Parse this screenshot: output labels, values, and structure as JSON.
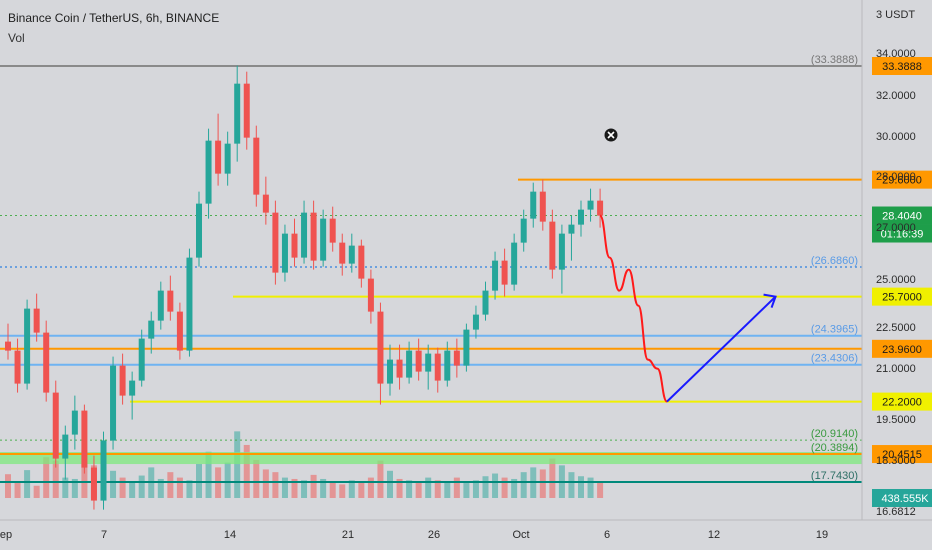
{
  "header": {
    "title": "Binance Coin / TetherUS, 6h, BINANCE",
    "indicator": "Vol"
  },
  "colors": {
    "background": "#d6d7db",
    "up_candle": "#26a69a",
    "down_candle": "#ef5350",
    "yellow_level": "#f0f000",
    "orange_level": "#ff9800",
    "blue_level": "#6fb3f2",
    "dotted_blue": "#4a8fe0",
    "dotted_green": "#4caf50",
    "teal_level": "#00897b",
    "green_band": "#7dea7d",
    "projection_red": "#ff1a1a",
    "projection_blue": "#1a1aff",
    "price_badge": "#1e9e4a"
  },
  "chart_data": {
    "type": "candlestick",
    "title": "Binance Coin / TetherUS, 6h, BINANCE",
    "indicator": "Vol",
    "y_unit": "USDT",
    "x_tick_labels": [
      "ep",
      "7",
      "14",
      "21",
      "26",
      "Oct",
      "6",
      "12",
      "19"
    ],
    "y_tick_labels": [
      "34.0000",
      "32.0000",
      "30.0000",
      "28.0000",
      "27.0000",
      "25.0000",
      "22.5000",
      "21.0000",
      "19.5000",
      "18.3000",
      "16.6812"
    ],
    "axis_top_label": "3 USDT",
    "ylim": [
      16.6,
      35.0
    ],
    "grid": false,
    "candles": [
      [
        0,
        24.2,
        24.8,
        23.6,
        23.9
      ],
      [
        1,
        23.9,
        24.3,
        22.5,
        22.8
      ],
      [
        2,
        22.8,
        25.6,
        22.6,
        25.3
      ],
      [
        3,
        25.3,
        25.8,
        24.2,
        24.5
      ],
      [
        4,
        24.5,
        24.9,
        22.2,
        22.5
      ],
      [
        5,
        22.5,
        22.9,
        20.0,
        20.3
      ],
      [
        6,
        20.3,
        21.4,
        19.6,
        21.1
      ],
      [
        7,
        21.1,
        22.4,
        20.6,
        21.9
      ],
      [
        8,
        21.9,
        22.1,
        19.8,
        20.0
      ],
      [
        9,
        20.0,
        20.4,
        18.6,
        18.9
      ],
      [
        10,
        18.9,
        21.2,
        18.6,
        20.9
      ],
      [
        11,
        20.9,
        23.7,
        20.6,
        23.4
      ],
      [
        12,
        23.4,
        23.8,
        22.1,
        22.4
      ],
      [
        13,
        22.4,
        23.2,
        21.6,
        22.9
      ],
      [
        14,
        22.9,
        24.6,
        22.7,
        24.3
      ],
      [
        15,
        24.3,
        25.2,
        23.8,
        24.9
      ],
      [
        16,
        24.9,
        26.2,
        24.6,
        25.9
      ],
      [
        17,
        25.9,
        26.4,
        24.9,
        25.2
      ],
      [
        18,
        25.2,
        25.5,
        23.6,
        23.9
      ],
      [
        19,
        23.9,
        27.3,
        23.7,
        27.0
      ],
      [
        20,
        27.0,
        29.2,
        26.7,
        28.8
      ],
      [
        21,
        28.8,
        31.3,
        28.3,
        30.9
      ],
      [
        22,
        30.9,
        31.8,
        29.4,
        29.8
      ],
      [
        23,
        29.8,
        31.2,
        29.4,
        30.8
      ],
      [
        24,
        30.8,
        33.4,
        30.2,
        32.8
      ],
      [
        25,
        32.8,
        33.2,
        30.6,
        31.0
      ],
      [
        26,
        31.0,
        31.4,
        28.7,
        29.1
      ],
      [
        27,
        29.1,
        29.7,
        28.1,
        28.5
      ],
      [
        28,
        28.5,
        28.9,
        26.1,
        26.5
      ],
      [
        29,
        26.5,
        28.1,
        26.2,
        27.8
      ],
      [
        30,
        27.8,
        28.3,
        26.7,
        27.0
      ],
      [
        31,
        27.0,
        28.9,
        26.8,
        28.5
      ],
      [
        32,
        28.5,
        28.9,
        26.6,
        26.9
      ],
      [
        33,
        26.9,
        28.6,
        26.7,
        28.3
      ],
      [
        34,
        28.3,
        28.7,
        27.2,
        27.5
      ],
      [
        35,
        27.5,
        27.8,
        26.4,
        26.8
      ],
      [
        36,
        26.8,
        27.8,
        26.5,
        27.4
      ],
      [
        37,
        27.4,
        27.6,
        26.0,
        26.3
      ],
      [
        38,
        26.3,
        26.6,
        24.8,
        25.2
      ],
      [
        39,
        25.2,
        25.5,
        22.1,
        22.8
      ],
      [
        40,
        22.8,
        24.1,
        22.4,
        23.6
      ],
      [
        41,
        23.6,
        24.1,
        22.6,
        23.0
      ],
      [
        42,
        23.0,
        24.2,
        22.8,
        23.9
      ],
      [
        43,
        23.9,
        24.3,
        22.9,
        23.2
      ],
      [
        44,
        23.2,
        24.1,
        22.6,
        23.8
      ],
      [
        45,
        23.8,
        24.0,
        22.5,
        22.9
      ],
      [
        46,
        22.9,
        24.2,
        22.7,
        23.9
      ],
      [
        47,
        23.9,
        24.3,
        23.0,
        23.4
      ],
      [
        48,
        23.4,
        24.8,
        23.2,
        24.6
      ],
      [
        49,
        24.6,
        25.4,
        24.3,
        25.1
      ],
      [
        50,
        25.1,
        26.2,
        24.9,
        25.9
      ],
      [
        51,
        25.9,
        27.2,
        25.6,
        26.9
      ],
      [
        52,
        26.9,
        27.3,
        25.7,
        26.1
      ],
      [
        53,
        26.1,
        27.8,
        25.9,
        27.5
      ],
      [
        54,
        27.5,
        28.6,
        27.2,
        28.3
      ],
      [
        55,
        28.3,
        29.5,
        28.0,
        29.2
      ],
      [
        56,
        29.2,
        29.6,
        27.9,
        28.2
      ],
      [
        57,
        28.2,
        28.6,
        26.3,
        26.6
      ],
      [
        58,
        26.6,
        28.1,
        25.8,
        27.8
      ],
      [
        59,
        27.8,
        28.4,
        26.9,
        28.1
      ],
      [
        60,
        28.1,
        28.9,
        27.7,
        28.6
      ],
      [
        61,
        28.6,
        29.3,
        28.2,
        28.9
      ],
      [
        62,
        28.9,
        29.3,
        28.0,
        28.4
      ]
    ],
    "volume_note": "volume bars shown (up = teal, down = red)",
    "volume": [
      35,
      22,
      41,
      18,
      60,
      55,
      30,
      28,
      70,
      48,
      85,
      40,
      30,
      25,
      33,
      45,
      28,
      38,
      30,
      26,
      50,
      68,
      45,
      52,
      98,
      78,
      56,
      42,
      38,
      30,
      28,
      26,
      34,
      28,
      24,
      20,
      26,
      22,
      30,
      55,
      40,
      28,
      26,
      22,
      30,
      26,
      24,
      30,
      22,
      26,
      32,
      36,
      30,
      28,
      38,
      45,
      42,
      58,
      48,
      38,
      32,
      30,
      24
    ],
    "horizontal_levels": [
      {
        "price": 33.3888,
        "label": "(33.3888)",
        "axis_label": "33.3888",
        "style": "solid-gray-axis-orange"
      },
      {
        "price": 29.6,
        "label": "",
        "axis_label": "29.6000",
        "style": "orange"
      },
      {
        "price": 28.404,
        "label": "",
        "axis_label": "28.4040",
        "style": "dotted-green-current"
      },
      {
        "price": 26.686,
        "label": "(26.6860)",
        "axis_label": "",
        "style": "dotted-blue"
      },
      {
        "price": 25.7,
        "label": "",
        "axis_label": "25.7000",
        "style": "yellow"
      },
      {
        "price": 24.3965,
        "label": "(24.3965)",
        "axis_label": "",
        "style": "light-blue"
      },
      {
        "price": 23.96,
        "label": "",
        "axis_label": "23.9600",
        "style": "orange"
      },
      {
        "price": 23.4306,
        "label": "(23.4306)",
        "axis_label": "",
        "style": "light-blue"
      },
      {
        "price": 22.2,
        "label": "",
        "axis_label": "22.2000",
        "style": "yellow"
      },
      {
        "price": 20.914,
        "label": "(20.9140)",
        "axis_label": "",
        "style": "dotted-green"
      },
      {
        "price": 20.4515,
        "label": "(20.3894)",
        "axis_label": "20.4515",
        "style": "orange-green-band"
      },
      {
        "price": 17.743,
        "label": "(17.7430)",
        "axis_label": "",
        "style": "teal"
      }
    ],
    "current_price": {
      "price": "28.4040",
      "countdown": "01:16:39"
    },
    "volume_label": "438.555K",
    "projection": {
      "red_path": [
        [
          62,
          28.4
        ],
        [
          63,
          27.0
        ],
        [
          64,
          25.9
        ],
        [
          65,
          26.6
        ],
        [
          66,
          25.4
        ],
        [
          67,
          23.6
        ],
        [
          68,
          23.3
        ],
        [
          69,
          22.2
        ]
      ],
      "blue_line": [
        [
          69,
          22.2
        ],
        [
          81,
          25.7
        ]
      ]
    }
  }
}
